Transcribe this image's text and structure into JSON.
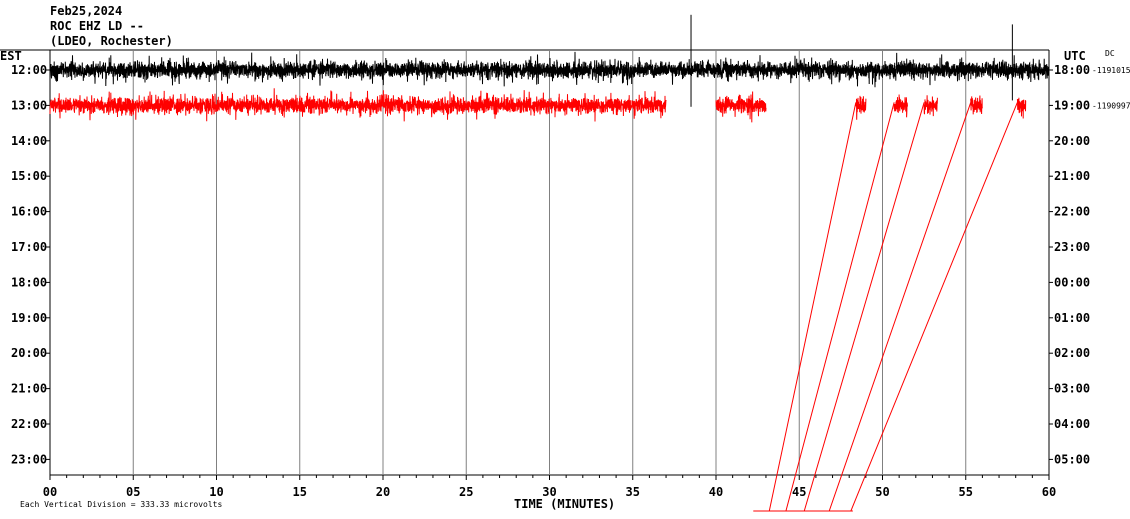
{
  "chart_data": {
    "type": "line",
    "title": [
      "Feb25,2024",
      "ROC EHZ LD --",
      "(LDEO, Rochester)"
    ],
    "xlabel": "TIME (MINUTES)",
    "x_ticks": [
      "00",
      "05",
      "10",
      "15",
      "20",
      "25",
      "30",
      "35",
      "40",
      "45",
      "50",
      "55",
      "60"
    ],
    "xlim": [
      0,
      60
    ],
    "left_axis_label": "EST",
    "right_axis_label": "UTC",
    "dc_label": "DC",
    "est_hours": [
      "12:00",
      "13:00",
      "14:00",
      "15:00",
      "16:00",
      "17:00",
      "18:00",
      "19:00",
      "20:00",
      "21:00",
      "22:00",
      "23:00"
    ],
    "utc_hours": [
      "18:00",
      "19:00",
      "20:00",
      "21:00",
      "22:00",
      "23:00",
      "00:00",
      "01:00",
      "02:00",
      "03:00",
      "04:00",
      "05:00"
    ],
    "dc_offsets": [
      "-1191015",
      "-1190997"
    ],
    "footer": "Each Vertical Division =  333.33 microvolts",
    "grid": "vertical every 5 minutes",
    "series": [
      {
        "hour": "12:00",
        "color": "#000000",
        "segments": [
          [
            0,
            60
          ]
        ],
        "spikes": [
          {
            "minute": 38.5,
            "amplitude": 2.3
          },
          {
            "minute": 57.8,
            "amplitude": 1.9
          }
        ]
      },
      {
        "hour": "13:00",
        "color": "#ff0000",
        "segments": [
          [
            0,
            37
          ],
          [
            40,
            43
          ],
          [
            48.4,
            49
          ],
          [
            50.7,
            51.5
          ],
          [
            52.5,
            53.3
          ],
          [
            55.3,
            56
          ],
          [
            58.1,
            58.6
          ]
        ]
      }
    ],
    "connector_lines": [
      {
        "from_minute": 48.4,
        "to_minute": 43.2
      },
      {
        "from_minute": 50.7,
        "to_minute": 44.2
      },
      {
        "from_minute": 52.5,
        "to_minute": 45.3
      },
      {
        "from_minute": 55.3,
        "to_minute": 46.8
      },
      {
        "from_minute": 58.1,
        "to_minute": 48.1
      }
    ]
  }
}
